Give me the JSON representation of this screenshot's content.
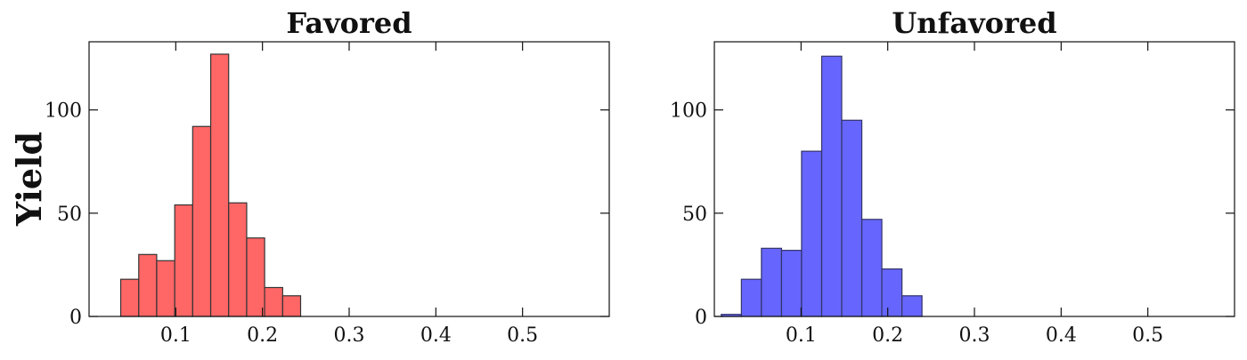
{
  "ylabel": "Yield",
  "chart_data": [
    {
      "type": "bar",
      "title": "Favored",
      "xlabel": "",
      "ylabel": "Yield",
      "color": "#ff6666",
      "edge_color": "#333333",
      "xlim": [
        0.0,
        0.6
      ],
      "ylim": [
        0,
        133
      ],
      "xticks": [
        0.1,
        0.2,
        0.3,
        0.4,
        0.5
      ],
      "xtick_labels": [
        "0.1",
        "0.2",
        "0.3",
        "0.4",
        "0.5"
      ],
      "yticks": [
        0,
        50,
        100
      ],
      "ytick_labels": [
        "0",
        "50",
        "100"
      ],
      "bin_edges": [
        0.0365,
        0.0573,
        0.078,
        0.0988,
        0.1195,
        0.1403,
        0.161,
        0.1818,
        0.2025,
        0.2233,
        0.244
      ],
      "values": [
        18,
        30,
        27,
        54,
        92,
        127,
        55,
        38,
        14,
        10
      ]
    },
    {
      "type": "bar",
      "title": "Unfavored",
      "xlabel": "",
      "ylabel": "",
      "color": "#6666ff",
      "edge_color": "#333366",
      "xlim": [
        0.0,
        0.6
      ],
      "ylim": [
        0,
        133
      ],
      "xticks": [
        0.1,
        0.2,
        0.3,
        0.4,
        0.5
      ],
      "xtick_labels": [
        "0.1",
        "0.2",
        "0.3",
        "0.4",
        "0.5"
      ],
      "yticks": [
        0,
        50,
        100
      ],
      "ytick_labels": [
        "0",
        "50",
        "100"
      ],
      "bin_edges": [
        0.008,
        0.0312,
        0.0543,
        0.0775,
        0.1006,
        0.1238,
        0.1469,
        0.1701,
        0.1932,
        0.2164,
        0.2395
      ],
      "values": [
        1,
        18,
        33,
        32,
        80,
        126,
        95,
        47,
        23,
        10
      ]
    }
  ]
}
